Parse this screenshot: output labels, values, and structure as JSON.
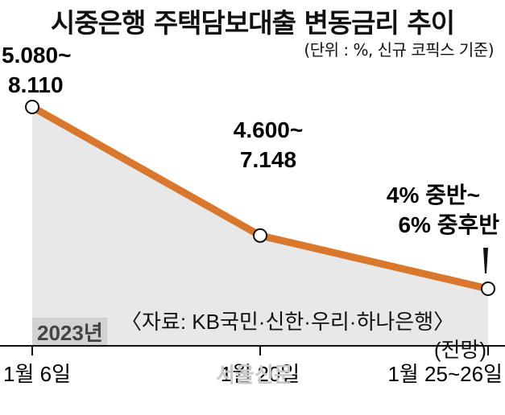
{
  "chart_data": {
    "type": "area",
    "title": "시중은행 주택담보대출 변동금리 추이",
    "subtitle": "(단위 : %, 신규 코픽스 기준)",
    "year_label": "2023년",
    "source": "〈자료: KB국민·신한·우리·하나은행〉",
    "categories": [
      "1월 6일",
      "1월 20일",
      "1월 25~26일"
    ],
    "forecast_note": "(전망)",
    "points": [
      {
        "x": "1월 6일",
        "label_lines": [
          "5.080~",
          "8.110"
        ],
        "low": 5.08,
        "high": 8.11
      },
      {
        "x": "1월 20일",
        "label_lines": [
          "4.600~",
          "7.148"
        ],
        "low": 4.6,
        "high": 7.148
      },
      {
        "x": "1월 25~26일",
        "label_lines": [
          "4% 중반~",
          "6% 중후반"
        ],
        "low": 4.5,
        "high": 6.75
      }
    ],
    "line_color": "#d9772c",
    "area_color": "#e8e8e8",
    "grid": false
  },
  "watermark": "서울신문"
}
